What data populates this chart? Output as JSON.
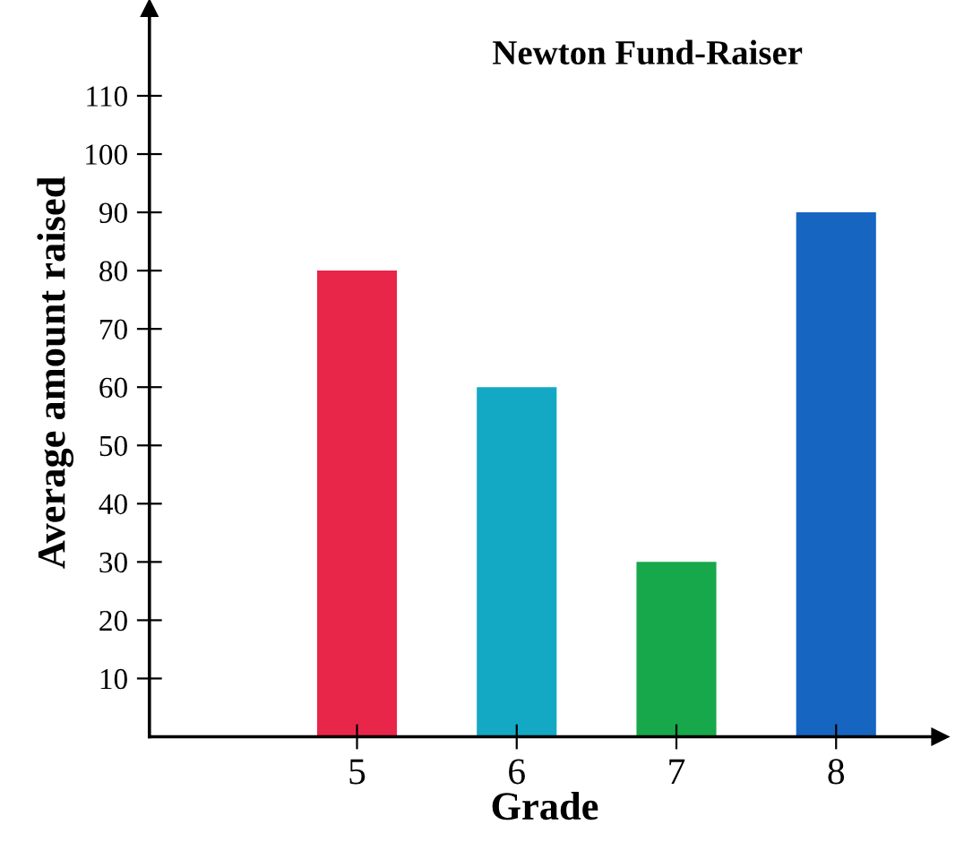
{
  "chart_data": {
    "type": "bar",
    "title": "Newton Fund-Raiser",
    "xlabel": "Grade",
    "ylabel": "Average amount raised",
    "categories": [
      "5",
      "6",
      "7",
      "8"
    ],
    "values": [
      80,
      60,
      30,
      90
    ],
    "colors": [
      "#e8264a",
      "#13a9c4",
      "#17a84b",
      "#1666c1"
    ],
    "ylim": [
      0,
      125
    ],
    "yticks": [
      10,
      20,
      30,
      40,
      50,
      60,
      70,
      80,
      90,
      100,
      110
    ],
    "grid": false
  }
}
